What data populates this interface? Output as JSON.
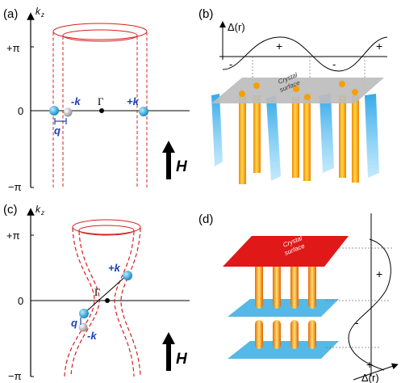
{
  "panels": {
    "a": {
      "label": "(a)",
      "axis_label": "k",
      "axis_sub": "z",
      "tick_top": "+π",
      "tick_mid": "0",
      "tick_bottom": "−π",
      "minus_k": "-k",
      "plus_k": "+k",
      "gamma": "Γ",
      "q": "q",
      "field": "H"
    },
    "b": {
      "label": "(b)",
      "delta_label": "Δ(r)",
      "signs": [
        "-",
        "+",
        "-",
        "+"
      ],
      "surface_text": [
        "Crystal",
        "surface"
      ]
    },
    "c": {
      "label": "(c)",
      "axis_label": "k",
      "axis_sub": "z",
      "tick_top": "+π",
      "tick_mid": "0",
      "tick_bottom": "−π",
      "plus_k": "+k",
      "minus_k": "-k",
      "gamma": "Γ",
      "q": "q",
      "field": "H"
    },
    "d": {
      "label": "(d)",
      "delta_label": "Δ(r)",
      "signs": [
        "+",
        "-",
        "+"
      ],
      "surface_text": [
        "Crystal",
        "surface"
      ]
    }
  },
  "colors": {
    "fermi_surface": "#d42020",
    "k_label": "#1a3fb8",
    "cyan": "#29a8e0",
    "orange": "#f5a000",
    "red_surface": "#e01818",
    "gray_surface": "#bdbdbd"
  }
}
